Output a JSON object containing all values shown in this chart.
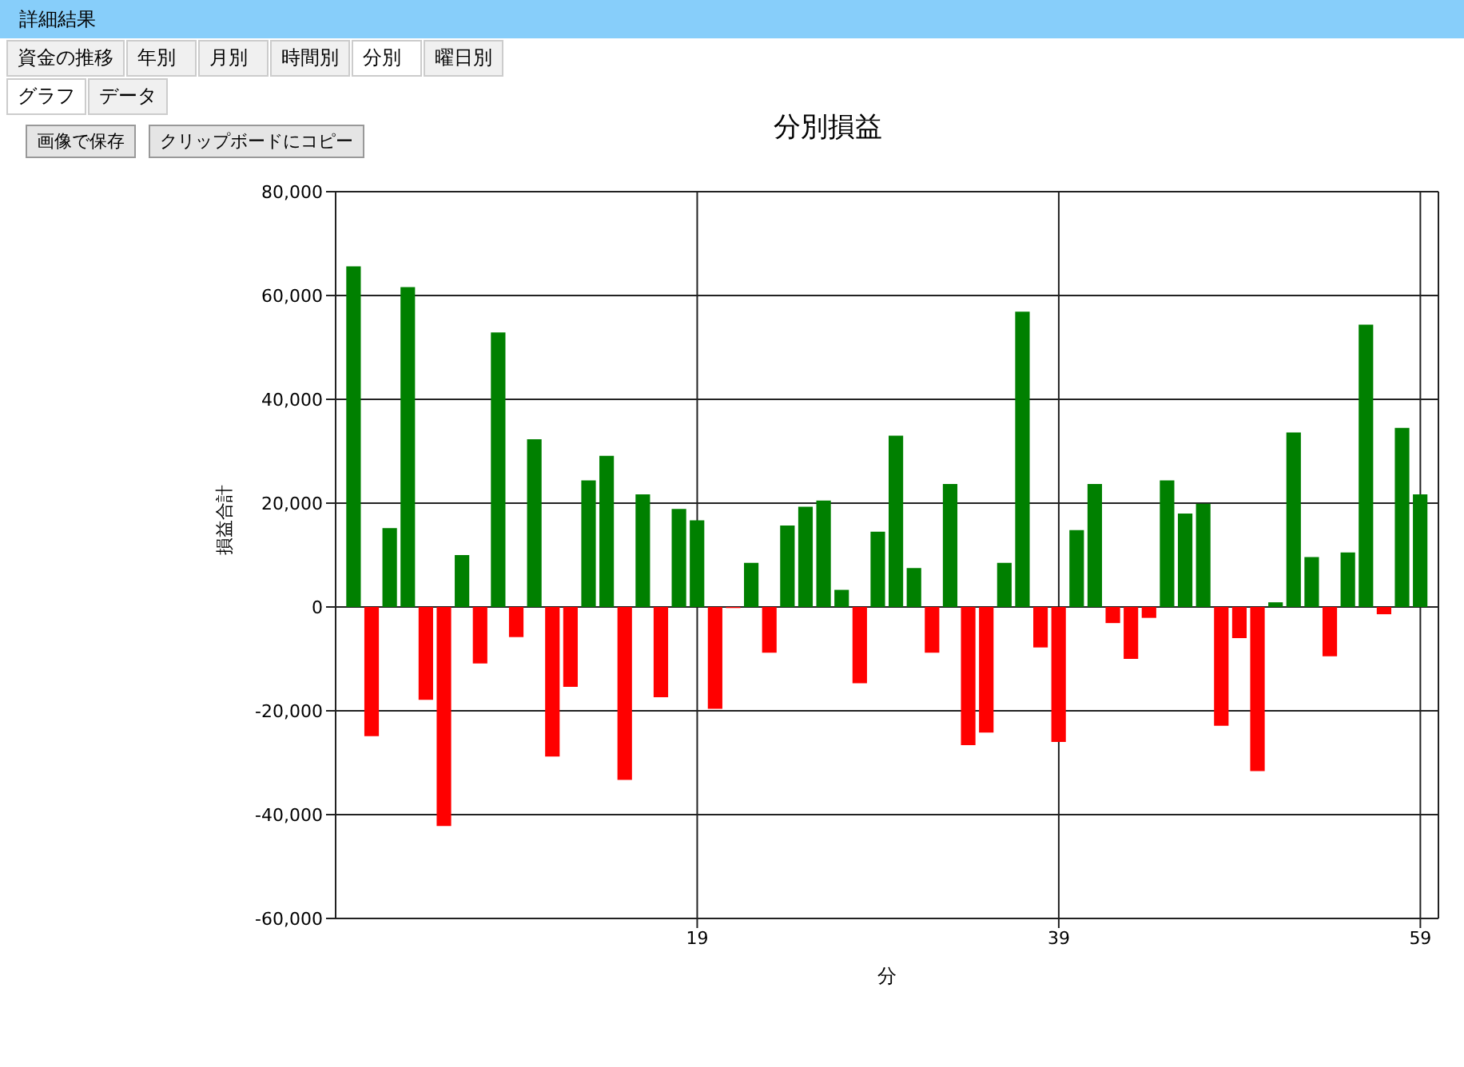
{
  "chart_data": {
    "type": "bar",
    "title": "分別損益",
    "xlabel": "分",
    "ylabel": "損益合計",
    "annotations": [
      "詳細結果",
      "資金の推移",
      "年別",
      "月別",
      "時間別",
      "分別",
      "曜日別",
      "グラフ",
      "データ",
      "画像で保存",
      "クリップボードにコピー"
    ],
    "x": [
      0,
      1,
      2,
      3,
      4,
      5,
      6,
      7,
      8,
      9,
      10,
      11,
      12,
      13,
      14,
      15,
      16,
      17,
      18,
      19,
      20,
      21,
      22,
      23,
      24,
      25,
      26,
      27,
      28,
      29,
      30,
      31,
      32,
      33,
      34,
      35,
      36,
      37,
      38,
      39,
      40,
      41,
      42,
      43,
      44,
      45,
      46,
      47,
      48,
      49,
      50,
      51,
      52,
      53,
      54,
      55,
      56,
      57,
      58,
      59
    ],
    "values": [
      65600,
      -24900,
      15200,
      61600,
      -17900,
      -42200,
      10000,
      -10900,
      52900,
      -5800,
      32300,
      -28800,
      -15400,
      24400,
      29100,
      -33300,
      21700,
      -17400,
      18900,
      16700,
      -19600,
      -200,
      8500,
      -8800,
      15700,
      19300,
      20500,
      3300,
      -14700,
      14500,
      33000,
      7500,
      -8800,
      23700,
      -26600,
      -24200,
      8500,
      56900,
      -7800,
      -26000,
      14800,
      23700,
      -3100,
      -10000,
      -2100,
      24400,
      18000,
      19900,
      -22900,
      -6000,
      -31600,
      900,
      33600,
      9600,
      -9500,
      10500,
      54400,
      -1400,
      34500,
      21700
    ],
    "colors": [
      "#008000",
      "#ff0000",
      "#008000",
      "#008000",
      "#ff0000",
      "#ff0000",
      "#008000",
      "#ff0000",
      "#008000",
      "#ff0000",
      "#008000",
      "#ff0000",
      "#ff0000",
      "#008000",
      "#008000",
      "#ff0000",
      "#008000",
      "#ff0000",
      "#008000",
      "#008000",
      "#ff0000",
      "#ff0000",
      "#008000",
      "#ff0000",
      "#008000",
      "#008000",
      "#008000",
      "#008000",
      "#ff0000",
      "#008000",
      "#008000",
      "#008000",
      "#ff0000",
      "#008000",
      "#ff0000",
      "#ff0000",
      "#008000",
      "#008000",
      "#ff0000",
      "#ff0000",
      "#008000",
      "#008000",
      "#ff0000",
      "#ff0000",
      "#ff0000",
      "#008000",
      "#008000",
      "#008000",
      "#ff0000",
      "#ff0000",
      "#ff0000",
      "#008000",
      "#008000",
      "#008000",
      "#ff0000",
      "#008000",
      "#008000",
      "#ff0000",
      "#008000",
      "#008000"
    ],
    "xlim": [
      -1,
      60
    ],
    "xticks": [
      19,
      39,
      59
    ],
    "ylim": [
      -60000,
      80000
    ],
    "yticks": [
      {
        "value": -60000,
        "label": "-60,000"
      },
      {
        "value": -40000,
        "label": "-40,000"
      },
      {
        "value": -20000,
        "label": "-20,000"
      },
      {
        "value": 0,
        "label": "0"
      },
      {
        "value": 20000,
        "label": "20,000"
      },
      {
        "value": 40000,
        "label": "40,000"
      },
      {
        "value": 60000,
        "label": "60,000"
      },
      {
        "value": 80000,
        "label": "80,000"
      }
    ],
    "grid": true,
    "legend": false
  }
}
